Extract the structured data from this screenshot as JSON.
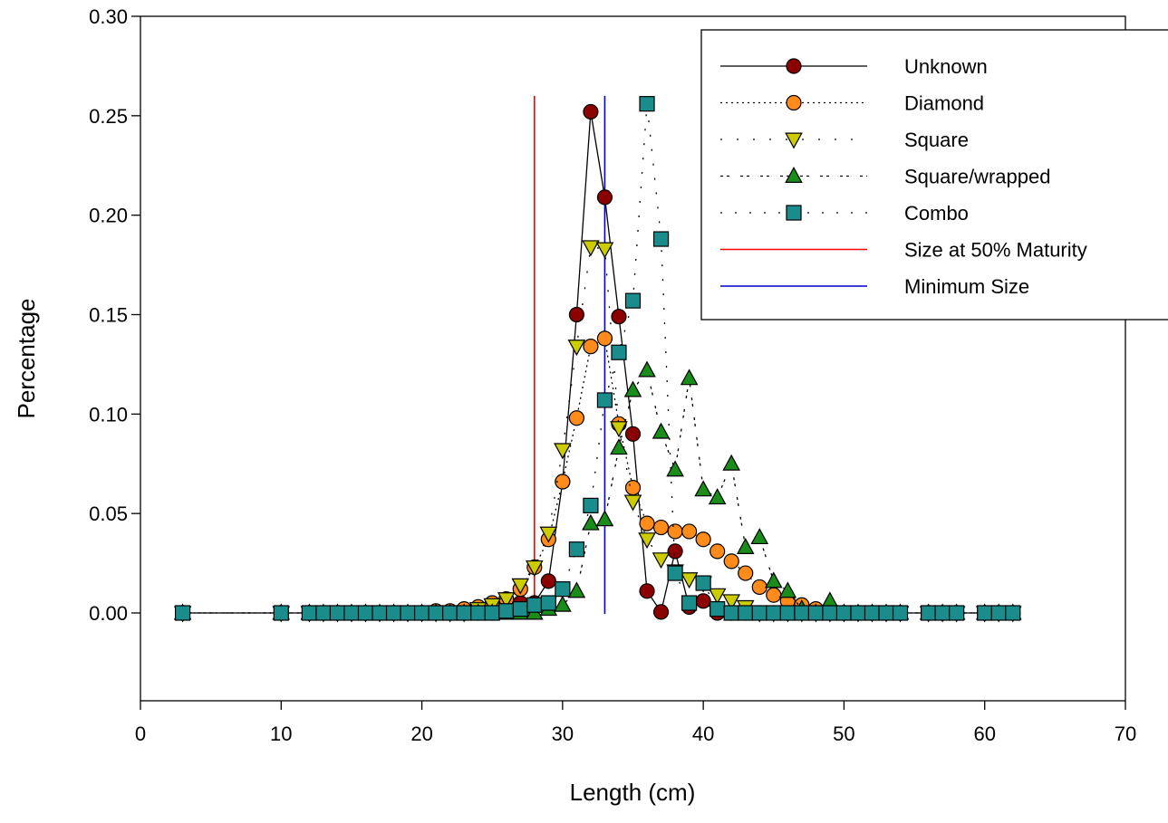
{
  "chart_data": {
    "type": "scatter",
    "title": "",
    "xlabel": "Length (cm)",
    "ylabel": "Percentage",
    "xlim": [
      0,
      70
    ],
    "ylim": [
      -0.045,
      0.3
    ],
    "xticks": [
      "0",
      "10",
      "20",
      "30",
      "40",
      "50",
      "60",
      "70"
    ],
    "yticks": [
      "0.00",
      "0.05",
      "0.10",
      "0.15",
      "0.20",
      "0.25",
      "0.30"
    ],
    "grid": false,
    "legend_position": "top-right",
    "series": [
      {
        "name": "Unknown",
        "marker": "circle",
        "color": "#8b0000",
        "line": "solid",
        "points": [
          [
            3,
            0
          ],
          [
            10,
            0
          ],
          [
            12,
            0
          ],
          [
            13,
            0
          ],
          [
            14,
            0
          ],
          [
            15,
            0
          ],
          [
            16,
            0
          ],
          [
            17,
            0
          ],
          [
            18,
            0
          ],
          [
            19,
            0
          ],
          [
            20,
            0
          ],
          [
            21,
            0
          ],
          [
            22,
            0
          ],
          [
            23,
            0
          ],
          [
            24,
            0
          ],
          [
            25,
            0
          ],
          [
            26,
            0.001
          ],
          [
            27,
            0.005
          ],
          [
            28,
            0.005
          ],
          [
            29,
            0.016
          ],
          [
            30,
            0.066
          ],
          [
            31,
            0.15
          ],
          [
            32,
            0.252
          ],
          [
            33,
            0.209
          ],
          [
            34,
            0.149
          ],
          [
            35,
            0.09
          ],
          [
            36,
            0.011
          ],
          [
            37,
            0.0005
          ],
          [
            38,
            0.031
          ],
          [
            39,
            0.003
          ],
          [
            40,
            0.006
          ],
          [
            41,
            0
          ],
          [
            42,
            0
          ],
          [
            43,
            0
          ],
          [
            44,
            0
          ],
          [
            45,
            0
          ],
          [
            46,
            0
          ],
          [
            47,
            0
          ],
          [
            48,
            0
          ],
          [
            49,
            0
          ],
          [
            50,
            0
          ],
          [
            51,
            0
          ],
          [
            52,
            0
          ],
          [
            53,
            0
          ],
          [
            54,
            0
          ],
          [
            56,
            0
          ],
          [
            57,
            0
          ],
          [
            58,
            0
          ],
          [
            60,
            0
          ],
          [
            61,
            0
          ],
          [
            62,
            0
          ]
        ]
      },
      {
        "name": "Diamond",
        "marker": "circle",
        "color": "#ff8c1a",
        "line": "dotted",
        "points": [
          [
            3,
            0
          ],
          [
            10,
            0
          ],
          [
            12,
            0
          ],
          [
            13,
            0
          ],
          [
            14,
            0
          ],
          [
            15,
            0
          ],
          [
            16,
            0
          ],
          [
            17,
            0
          ],
          [
            18,
            0
          ],
          [
            19,
            0
          ],
          [
            20,
            0
          ],
          [
            21,
            0.001
          ],
          [
            22,
            0.001
          ],
          [
            23,
            0.002
          ],
          [
            24,
            0.003
          ],
          [
            25,
            0.005
          ],
          [
            26,
            0.007
          ],
          [
            27,
            0.012
          ],
          [
            28,
            0.023
          ],
          [
            29,
            0.037
          ],
          [
            30,
            0.066
          ],
          [
            31,
            0.098
          ],
          [
            32,
            0.134
          ],
          [
            33,
            0.138
          ],
          [
            34,
            0.095
          ],
          [
            35,
            0.063
          ],
          [
            36,
            0.045
          ],
          [
            37,
            0.043
          ],
          [
            38,
            0.041
          ],
          [
            39,
            0.041
          ],
          [
            40,
            0.037
          ],
          [
            41,
            0.031
          ],
          [
            42,
            0.026
          ],
          [
            43,
            0.02
          ],
          [
            44,
            0.013
          ],
          [
            45,
            0.009
          ],
          [
            46,
            0.006
          ],
          [
            47,
            0.004
          ],
          [
            48,
            0.002
          ],
          [
            49,
            0
          ],
          [
            50,
            0
          ],
          [
            51,
            0
          ],
          [
            52,
            0
          ],
          [
            53,
            0
          ],
          [
            54,
            0
          ],
          [
            56,
            0
          ],
          [
            57,
            0
          ],
          [
            58,
            0
          ],
          [
            60,
            0
          ],
          [
            61,
            0
          ],
          [
            62,
            0
          ]
        ]
      },
      {
        "name": "Square",
        "marker": "triangle-down",
        "color": "#cccc00",
        "line": "sparse-dotted",
        "points": [
          [
            3,
            0
          ],
          [
            10,
            0
          ],
          [
            12,
            0
          ],
          [
            13,
            0
          ],
          [
            14,
            0
          ],
          [
            15,
            0
          ],
          [
            16,
            0
          ],
          [
            17,
            0
          ],
          [
            18,
            0
          ],
          [
            19,
            0
          ],
          [
            20,
            0
          ],
          [
            21,
            0
          ],
          [
            22,
            0
          ],
          [
            23,
            0
          ],
          [
            24,
            0.002
          ],
          [
            25,
            0.004
          ],
          [
            26,
            0.007
          ],
          [
            27,
            0.014
          ],
          [
            28,
            0.023
          ],
          [
            29,
            0.04
          ],
          [
            30,
            0.082
          ],
          [
            31,
            0.134
          ],
          [
            32,
            0.184
          ],
          [
            33,
            0.183
          ],
          [
            34,
            0.093
          ],
          [
            35,
            0.056
          ],
          [
            36,
            0.037
          ],
          [
            37,
            0.027
          ],
          [
            38,
            0.021
          ],
          [
            39,
            0.017
          ],
          [
            40,
            0.015
          ],
          [
            41,
            0.009
          ],
          [
            42,
            0.006
          ],
          [
            43,
            0.003
          ],
          [
            44,
            0
          ],
          [
            45,
            0
          ],
          [
            46,
            0
          ],
          [
            47,
            0
          ],
          [
            48,
            0
          ],
          [
            49,
            0
          ],
          [
            50,
            0
          ],
          [
            51,
            0
          ],
          [
            52,
            0
          ],
          [
            53,
            0
          ],
          [
            54,
            0
          ],
          [
            56,
            0
          ],
          [
            57,
            0
          ],
          [
            58,
            0
          ],
          [
            60,
            0
          ],
          [
            61,
            0
          ],
          [
            62,
            0
          ]
        ]
      },
      {
        "name": "Square/wrapped",
        "marker": "triangle-up",
        "color": "#1a8c1a",
        "line": "short-dash",
        "points": [
          [
            3,
            0
          ],
          [
            10,
            0
          ],
          [
            12,
            0
          ],
          [
            13,
            0
          ],
          [
            14,
            0
          ],
          [
            15,
            0
          ],
          [
            16,
            0
          ],
          [
            17,
            0
          ],
          [
            18,
            0
          ],
          [
            19,
            0
          ],
          [
            20,
            0
          ],
          [
            21,
            0
          ],
          [
            22,
            0
          ],
          [
            23,
            0
          ],
          [
            24,
            0
          ],
          [
            25,
            0
          ],
          [
            26,
            0
          ],
          [
            27,
            0
          ],
          [
            28,
            0
          ],
          [
            29,
            0.002
          ],
          [
            30,
            0.004
          ],
          [
            31,
            0.011
          ],
          [
            32,
            0.045
          ],
          [
            33,
            0.047
          ],
          [
            34,
            0.083
          ],
          [
            35,
            0.112
          ],
          [
            36,
            0.122
          ],
          [
            37,
            0.091
          ],
          [
            38,
            0.072
          ],
          [
            39,
            0.118
          ],
          [
            40,
            0.062
          ],
          [
            41,
            0.058
          ],
          [
            42,
            0.075
          ],
          [
            43,
            0.033
          ],
          [
            44,
            0.038
          ],
          [
            45,
            0.016
          ],
          [
            46,
            0.011
          ],
          [
            47,
            0.002
          ],
          [
            48,
            0
          ],
          [
            49,
            0.006
          ],
          [
            50,
            0
          ],
          [
            51,
            0
          ],
          [
            52,
            0
          ],
          [
            53,
            0
          ],
          [
            54,
            0
          ],
          [
            56,
            0
          ],
          [
            57,
            0
          ],
          [
            58,
            0
          ],
          [
            60,
            0
          ],
          [
            61,
            0
          ],
          [
            62,
            0
          ]
        ]
      },
      {
        "name": "Combo",
        "marker": "square",
        "color": "#1a8c8c",
        "line": "dash-dot",
        "points": [
          [
            3,
            0
          ],
          [
            10,
            0
          ],
          [
            12,
            0
          ],
          [
            13,
            0
          ],
          [
            14,
            0
          ],
          [
            15,
            0
          ],
          [
            16,
            0
          ],
          [
            17,
            0
          ],
          [
            18,
            0
          ],
          [
            19,
            0
          ],
          [
            20,
            0
          ],
          [
            21,
            0
          ],
          [
            22,
            0
          ],
          [
            23,
            0
          ],
          [
            24,
            0
          ],
          [
            25,
            0
          ],
          [
            26,
            0.001
          ],
          [
            27,
            0.002
          ],
          [
            28,
            0.004
          ],
          [
            29,
            0.005
          ],
          [
            30,
            0.012
          ],
          [
            31,
            0.032
          ],
          [
            32,
            0.054
          ],
          [
            33,
            0.107
          ],
          [
            34,
            0.131
          ],
          [
            35,
            0.157
          ],
          [
            36,
            0.256
          ],
          [
            37,
            0.188
          ],
          [
            38,
            0.02
          ],
          [
            39,
            0.005
          ],
          [
            40,
            0.015
          ],
          [
            41,
            0.002
          ],
          [
            42,
            0
          ],
          [
            43,
            0
          ],
          [
            44,
            0
          ],
          [
            45,
            0
          ],
          [
            46,
            0
          ],
          [
            47,
            0
          ],
          [
            48,
            0
          ],
          [
            49,
            0
          ],
          [
            50,
            0
          ],
          [
            51,
            0
          ],
          [
            52,
            0
          ],
          [
            53,
            0
          ],
          [
            54,
            0
          ],
          [
            56,
            0
          ],
          [
            57,
            0
          ],
          [
            58,
            0
          ],
          [
            60,
            0
          ],
          [
            61,
            0
          ],
          [
            62,
            0
          ]
        ]
      }
    ],
    "reference_lines": [
      {
        "name": "Size at 50% Maturity",
        "x": 28,
        "y_top": 0.26,
        "color": "#ff0000"
      },
      {
        "name": "Minimum Size",
        "x": 33,
        "y_top": 0.26,
        "color": "#0000cc"
      }
    ]
  }
}
